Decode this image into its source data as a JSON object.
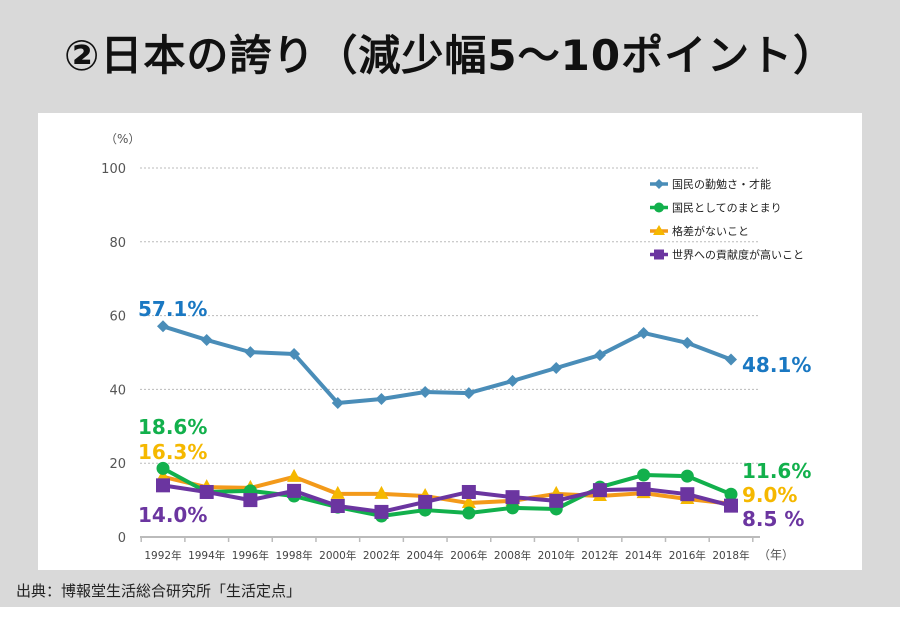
{
  "title": "②日本の誇り（減少幅5〜10ポイント）",
  "source": "出典：博報堂生活総合研究所「生活定点」",
  "chart_data": {
    "type": "line",
    "ylabel": "（%）",
    "xlabel": "（年）",
    "ylim": [
      0,
      100
    ],
    "yticks": [
      0,
      20,
      40,
      60,
      80,
      100
    ],
    "grid": true,
    "legend_position": "top-right",
    "categories": [
      "1992年",
      "1994年",
      "1996年",
      "1998年",
      "2000年",
      "2002年",
      "2004年",
      "2006年",
      "2008年",
      "2010年",
      "2012年",
      "2014年",
      "2016年",
      "2018年"
    ],
    "series": [
      {
        "name": "国民の勤勉さ・才能",
        "color": "#4a8db8",
        "marker": "diamond",
        "values": [
          57.1,
          53.4,
          50.1,
          49.6,
          36.3,
          37.4,
          39.3,
          39.0,
          42.3,
          45.8,
          49.3,
          55.3,
          52.6,
          48.1
        ],
        "start_label": "57.1%",
        "end_label": "48.1%",
        "label_color": "#1a78c2"
      },
      {
        "name": "国民としてのまとまり",
        "color": "#12b04c",
        "marker": "circle",
        "values": [
          18.6,
          12.2,
          12.5,
          11.1,
          8.1,
          5.7,
          7.3,
          6.5,
          7.9,
          7.6,
          13.5,
          16.8,
          16.5,
          11.6
        ],
        "start_label": "18.6%",
        "end_label": "11.6%",
        "label_color": "#12b04c"
      },
      {
        "name": "格差がないこと",
        "color": "#f39a1a",
        "marker": "triangle",
        "values": [
          16.3,
          13.5,
          13.3,
          16.3,
          11.7,
          11.7,
          11.1,
          9.2,
          9.8,
          11.7,
          11.1,
          11.9,
          10.3,
          9.0
        ],
        "start_label": "16.3%",
        "end_label": "9.0%",
        "label_color": "#f5b800"
      },
      {
        "name": "世界への貢献度が高いこと",
        "color": "#6b35a0",
        "marker": "square",
        "values": [
          14.0,
          12.2,
          10.0,
          12.5,
          8.4,
          6.8,
          9.5,
          12.2,
          10.8,
          9.8,
          12.7,
          13.0,
          11.6,
          8.5
        ],
        "start_label": "14.0%",
        "end_label": "8.5 %",
        "label_color": "#6b35a0"
      }
    ]
  }
}
